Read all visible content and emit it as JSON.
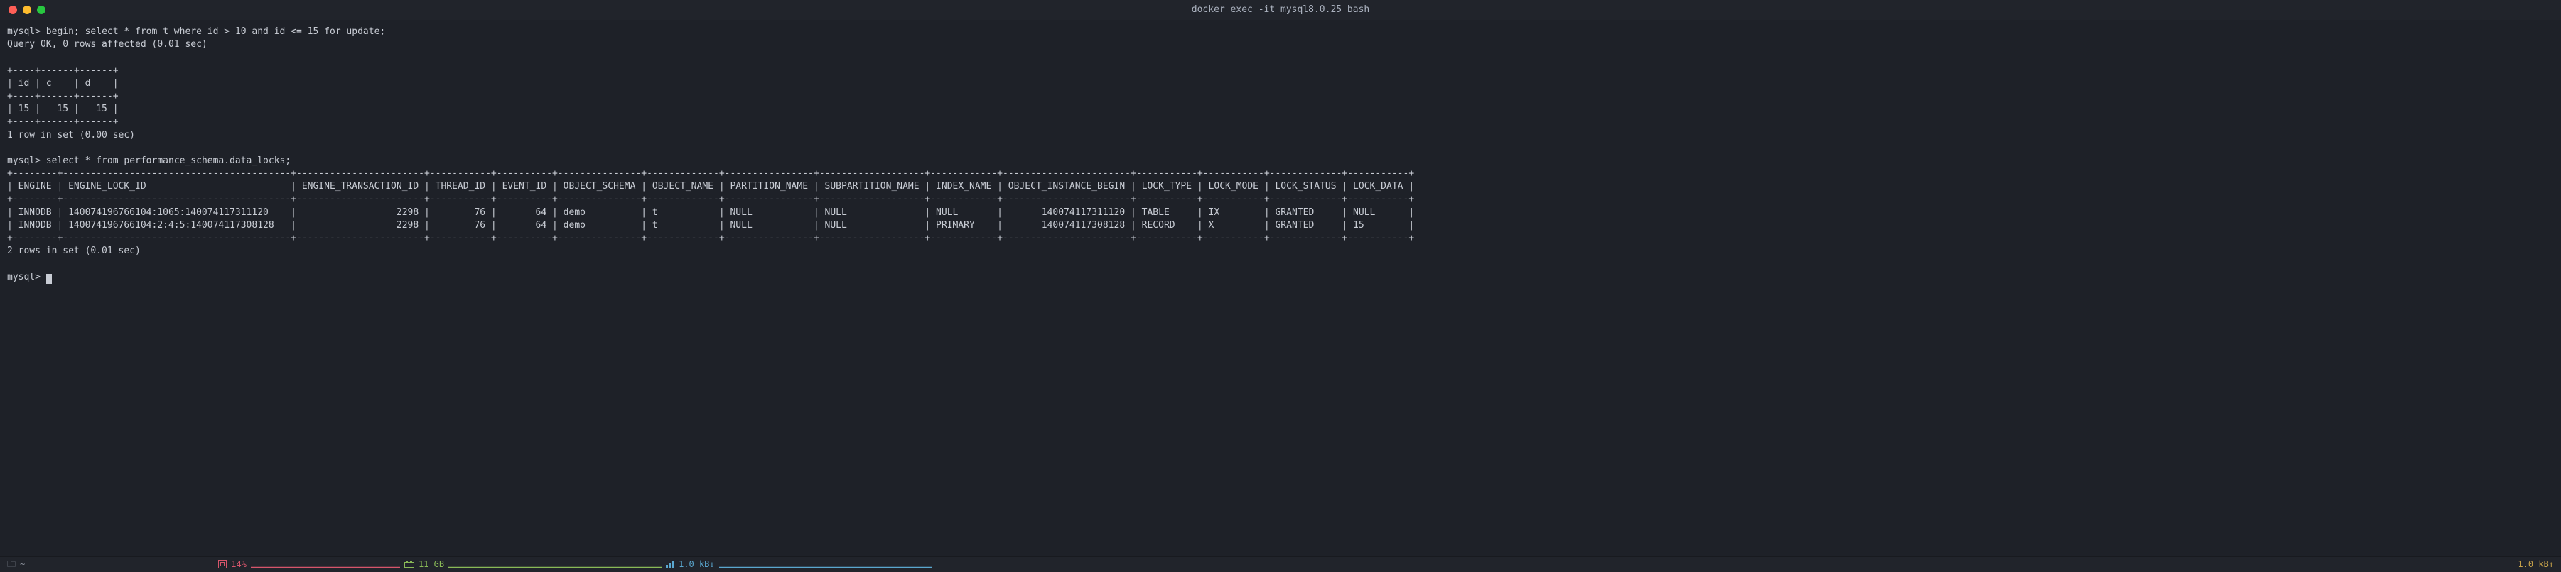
{
  "window": {
    "title": "docker exec -it mysql8.0.25 bash"
  },
  "colors": {
    "bg": "#1e2128",
    "fg": "#c8ccd4",
    "titlebar": "#21242b",
    "red": "#ff5f57",
    "yellow": "#febc2e",
    "green": "#28c840",
    "cpu": "#d6556b",
    "mem": "#89b957",
    "net": "#5aa7cf",
    "up": "#c7a24a"
  },
  "session": {
    "prompt": "mysql>",
    "query1": "begin; select * from t where id > 10 and id <= 15 for update;",
    "result1": "Query OK, 0 rows affected (0.01 sec)",
    "table1": {
      "border_top": "+----+------+------+",
      "header": "| id | c    | d    |",
      "border_mid": "+----+------+------+",
      "row": "| 15 |   15 |   15 |",
      "border_bot": "+----+------+------+",
      "footer": "1 row in set (0.00 sec)"
    },
    "query2": "select * from performance_schema.data_locks;",
    "table2": {
      "border": "+--------+-----------------------------------------+-----------------------+-----------+----------+---------------+-------------+----------------+-------------------+------------+-----------------------+-----------+-----------+-------------+-----------+",
      "header": "| ENGINE | ENGINE_LOCK_ID                          | ENGINE_TRANSACTION_ID | THREAD_ID | EVENT_ID | OBJECT_SCHEMA | OBJECT_NAME | PARTITION_NAME | SUBPARTITION_NAME | INDEX_NAME | OBJECT_INSTANCE_BEGIN | LOCK_TYPE | LOCK_MODE | LOCK_STATUS | LOCK_DATA |",
      "row1": "| INNODB | 140074196766104:1065:140074117311120    |                  2298 |        76 |       64 | demo          | t           | NULL           | NULL              | NULL       |       140074117311120 | TABLE     | IX        | GRANTED     | NULL      |",
      "row2": "| INNODB | 140074196766104:2:4:5:140074117308128   |                  2298 |        76 |       64 | demo          | t           | NULL           | NULL              | PRIMARY    |       140074117308128 | RECORD    | X         | GRANTED     | 15        |",
      "footer": "2 rows in set (0.01 sec)"
    }
  },
  "statusbar": {
    "path": "~",
    "cpu_pct": "14%",
    "mem": "11 GB",
    "net_down": "1.0 kB↓",
    "net_up": "1.0 kB↑"
  }
}
